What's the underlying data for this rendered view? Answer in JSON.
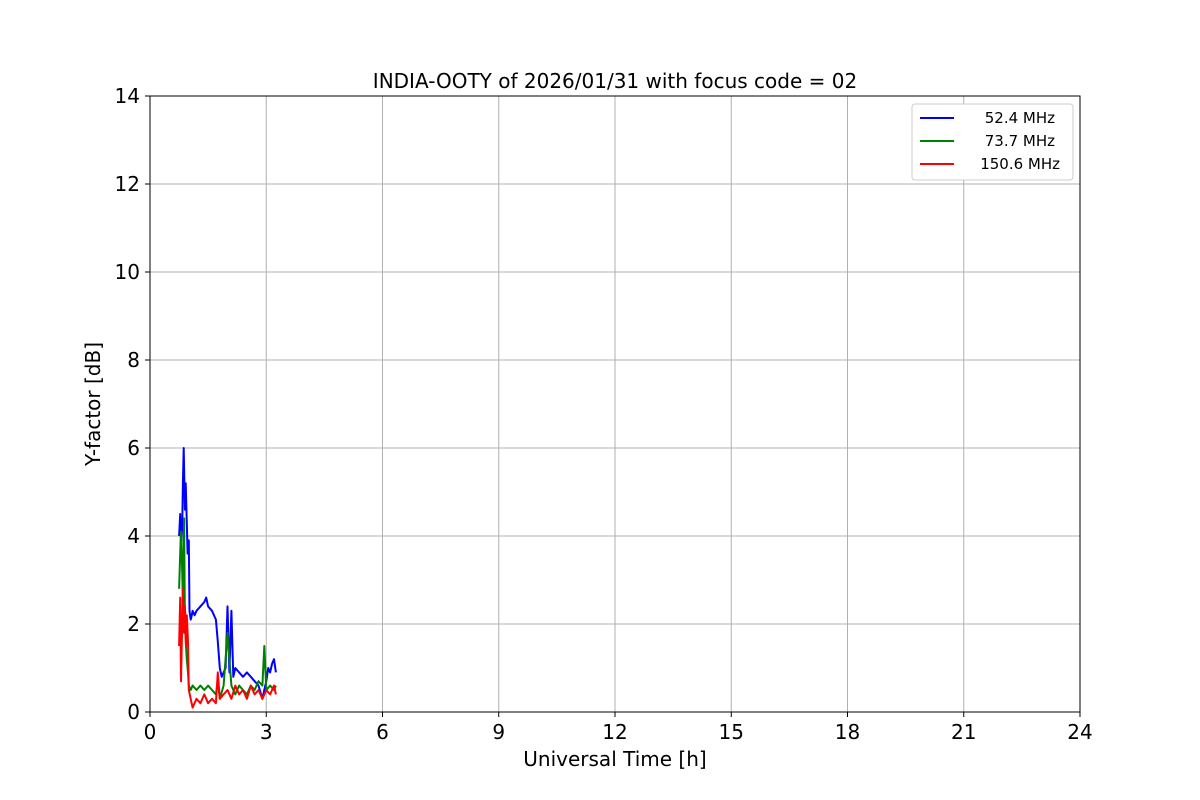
{
  "chart_data": {
    "type": "line",
    "title": "INDIA-OOTY of 2026/01/31 with focus code = 02",
    "xlabel": "Universal Time [h]",
    "ylabel": "Y-factor [dB]",
    "xlim": [
      0,
      24
    ],
    "ylim": [
      0,
      14
    ],
    "x_ticks": [
      0,
      3,
      6,
      9,
      12,
      15,
      18,
      21,
      24
    ],
    "y_ticks": [
      0,
      2,
      4,
      6,
      8,
      10,
      12,
      14
    ],
    "grid": true,
    "legend_position": "top-right",
    "series": [
      {
        "name": "52.4 MHz",
        "color": "#0000ff",
        "x": [
          0.75,
          0.78,
          0.8,
          0.83,
          0.85,
          0.87,
          0.9,
          0.92,
          0.95,
          0.97,
          1.0,
          1.02,
          1.05,
          1.08,
          1.1,
          1.15,
          1.2,
          1.3,
          1.4,
          1.45,
          1.5,
          1.6,
          1.7,
          1.75,
          1.8,
          1.85,
          1.9,
          1.95,
          2.0,
          2.05,
          2.1,
          2.15,
          2.2,
          2.3,
          2.4,
          2.5,
          2.6,
          2.7,
          2.8,
          2.9,
          2.95,
          3.0,
          3.05,
          3.1,
          3.15,
          3.2,
          3.25
        ],
        "y": [
          4.0,
          4.5,
          3.8,
          4.2,
          5.2,
          6.0,
          4.6,
          5.2,
          4.3,
          3.6,
          3.9,
          2.3,
          2.1,
          2.2,
          2.3,
          2.2,
          2.3,
          2.4,
          2.5,
          2.6,
          2.4,
          2.3,
          2.1,
          1.6,
          1.0,
          0.8,
          0.9,
          1.0,
          2.4,
          0.9,
          2.3,
          0.8,
          1.0,
          0.9,
          0.8,
          0.9,
          0.8,
          0.7,
          0.6,
          0.3,
          0.5,
          0.7,
          1.0,
          0.9,
          1.1,
          1.2,
          0.9
        ]
      },
      {
        "name": "73.7 MHz",
        "color": "#008000",
        "x": [
          0.75,
          0.78,
          0.8,
          0.83,
          0.85,
          0.88,
          0.9,
          0.93,
          0.95,
          0.98,
          1.0,
          1.05,
          1.1,
          1.2,
          1.3,
          1.4,
          1.5,
          1.6,
          1.7,
          1.75,
          1.8,
          1.9,
          2.0,
          2.1,
          2.15,
          2.2,
          2.3,
          2.4,
          2.5,
          2.6,
          2.7,
          2.8,
          2.9,
          2.95,
          3.0,
          3.1,
          3.2,
          3.25
        ],
        "y": [
          2.8,
          3.6,
          4.1,
          3.2,
          2.5,
          4.4,
          2.0,
          1.5,
          1.2,
          0.9,
          0.6,
          0.5,
          0.6,
          0.5,
          0.6,
          0.5,
          0.6,
          0.5,
          0.4,
          0.7,
          0.3,
          0.6,
          1.8,
          0.6,
          0.5,
          0.4,
          0.6,
          0.5,
          0.4,
          0.6,
          0.5,
          0.7,
          0.6,
          1.5,
          0.5,
          0.6,
          0.5,
          0.6
        ]
      },
      {
        "name": "150.6 MHz",
        "color": "#ff0000",
        "x": [
          0.75,
          0.78,
          0.8,
          0.83,
          0.85,
          0.88,
          0.9,
          0.93,
          0.95,
          0.98,
          1.0,
          1.05,
          1.1,
          1.2,
          1.3,
          1.4,
          1.5,
          1.6,
          1.7,
          1.75,
          1.8,
          1.9,
          2.0,
          2.1,
          2.2,
          2.3,
          2.4,
          2.5,
          2.6,
          2.7,
          2.8,
          2.9,
          3.0,
          3.1,
          3.2,
          3.25
        ],
        "y": [
          1.5,
          2.6,
          0.7,
          2.0,
          2.8,
          1.8,
          2.4,
          1.5,
          2.2,
          1.6,
          0.5,
          0.3,
          0.1,
          0.3,
          0.2,
          0.4,
          0.2,
          0.3,
          0.2,
          0.9,
          0.3,
          0.4,
          0.5,
          0.3,
          0.6,
          0.4,
          0.5,
          0.3,
          0.6,
          0.4,
          0.5,
          0.3,
          0.5,
          0.4,
          0.6,
          0.4
        ]
      }
    ]
  }
}
